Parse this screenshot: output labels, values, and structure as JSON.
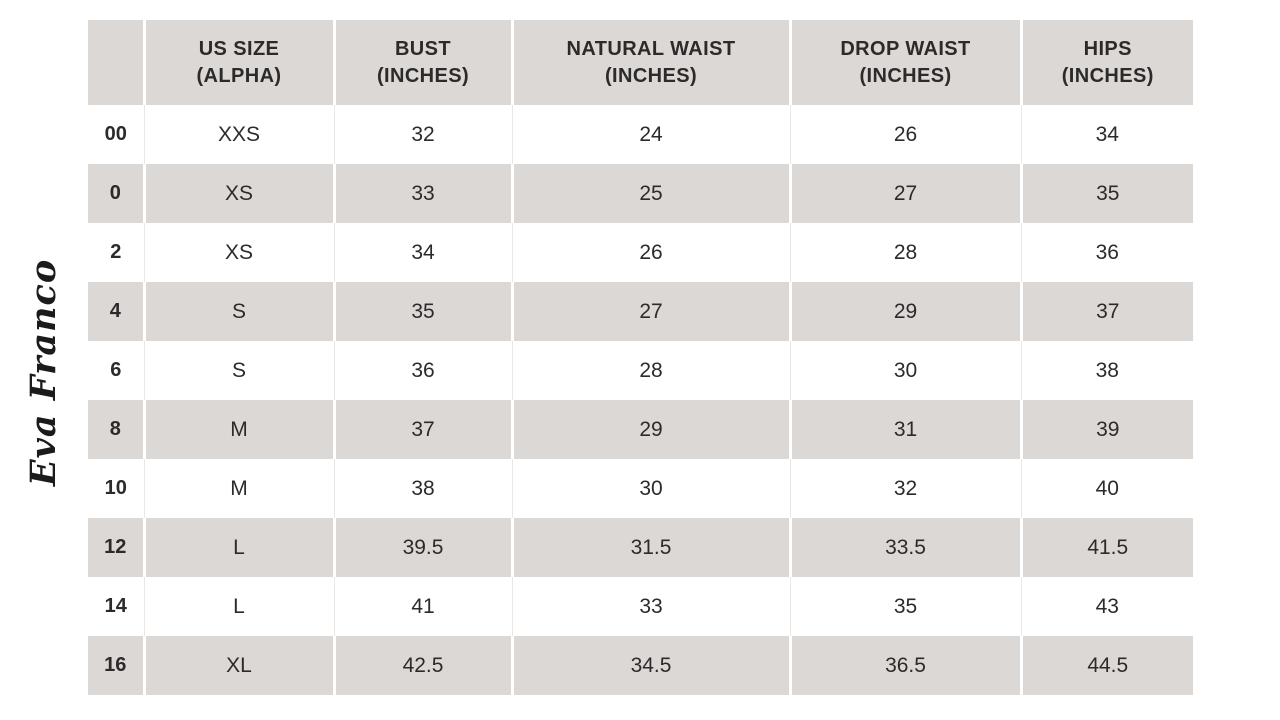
{
  "brand": {
    "logo_text": "Eva Franco"
  },
  "colors": {
    "cell_gray": "#dcd8d6",
    "text": "#2d2b2a",
    "row_white": "#ffffff"
  },
  "size_chart": {
    "headers": [
      {
        "line1": "",
        "line2": ""
      },
      {
        "line1": "US SIZE",
        "line2": "(ALPHA)"
      },
      {
        "line1": "BUST",
        "line2": "(INCHES)"
      },
      {
        "line1": "NATURAL WAIST",
        "line2": "(INCHES)"
      },
      {
        "line1": "DROP WAIST",
        "line2": "(INCHES)"
      },
      {
        "line1": "HIPS",
        "line2": "(INCHES)"
      }
    ],
    "rows": [
      [
        "00",
        "XXS",
        "32",
        "24",
        "26",
        "34"
      ],
      [
        "0",
        "XS",
        "33",
        "25",
        "27",
        "35"
      ],
      [
        "2",
        "XS",
        "34",
        "26",
        "28",
        "36"
      ],
      [
        "4",
        "S",
        "35",
        "27",
        "29",
        "37"
      ],
      [
        "6",
        "S",
        "36",
        "28",
        "30",
        "38"
      ],
      [
        "8",
        "M",
        "37",
        "29",
        "31",
        "39"
      ],
      [
        "10",
        "M",
        "38",
        "30",
        "32",
        "40"
      ],
      [
        "12",
        "L",
        "39.5",
        "31.5",
        "33.5",
        "41.5"
      ],
      [
        "14",
        "L",
        "41",
        "33",
        "35",
        "43"
      ],
      [
        "16",
        "XL",
        "42.5",
        "34.5",
        "36.5",
        "44.5"
      ]
    ]
  }
}
